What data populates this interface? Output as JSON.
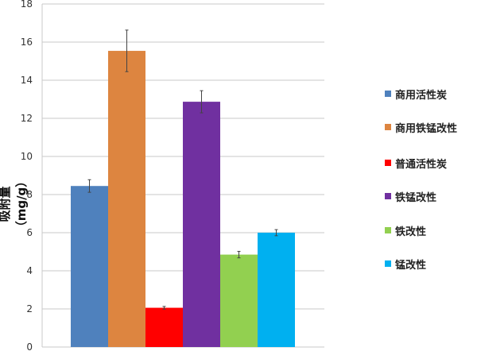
{
  "chart_data": {
    "type": "bar",
    "title": "",
    "xlabel": "",
    "ylabel": "吸附量（mg/g）",
    "ylim": [
      0,
      18
    ],
    "yticks": [
      0,
      2,
      4,
      6,
      8,
      10,
      12,
      14,
      16,
      18
    ],
    "grid": true,
    "legend_position": "right",
    "series": [
      {
        "name": "商用活性炭",
        "value": 8.45,
        "error": 0.33,
        "color": "#4F81BD"
      },
      {
        "name": "商用铁锰改性",
        "value": 15.54,
        "error": 1.09,
        "color": "#DD8540"
      },
      {
        "name": "普通活性炭",
        "value": 2.06,
        "error": 0.07,
        "color": "#FF0000"
      },
      {
        "name": "铁锰改性",
        "value": 12.87,
        "error": 0.58,
        "color": "#7030A0"
      },
      {
        "name": "铁改性",
        "value": 4.85,
        "error": 0.17,
        "color": "#92D050"
      },
      {
        "name": "锰改性",
        "value": 6.0,
        "error": 0.16,
        "color": "#00B0F0"
      }
    ]
  }
}
